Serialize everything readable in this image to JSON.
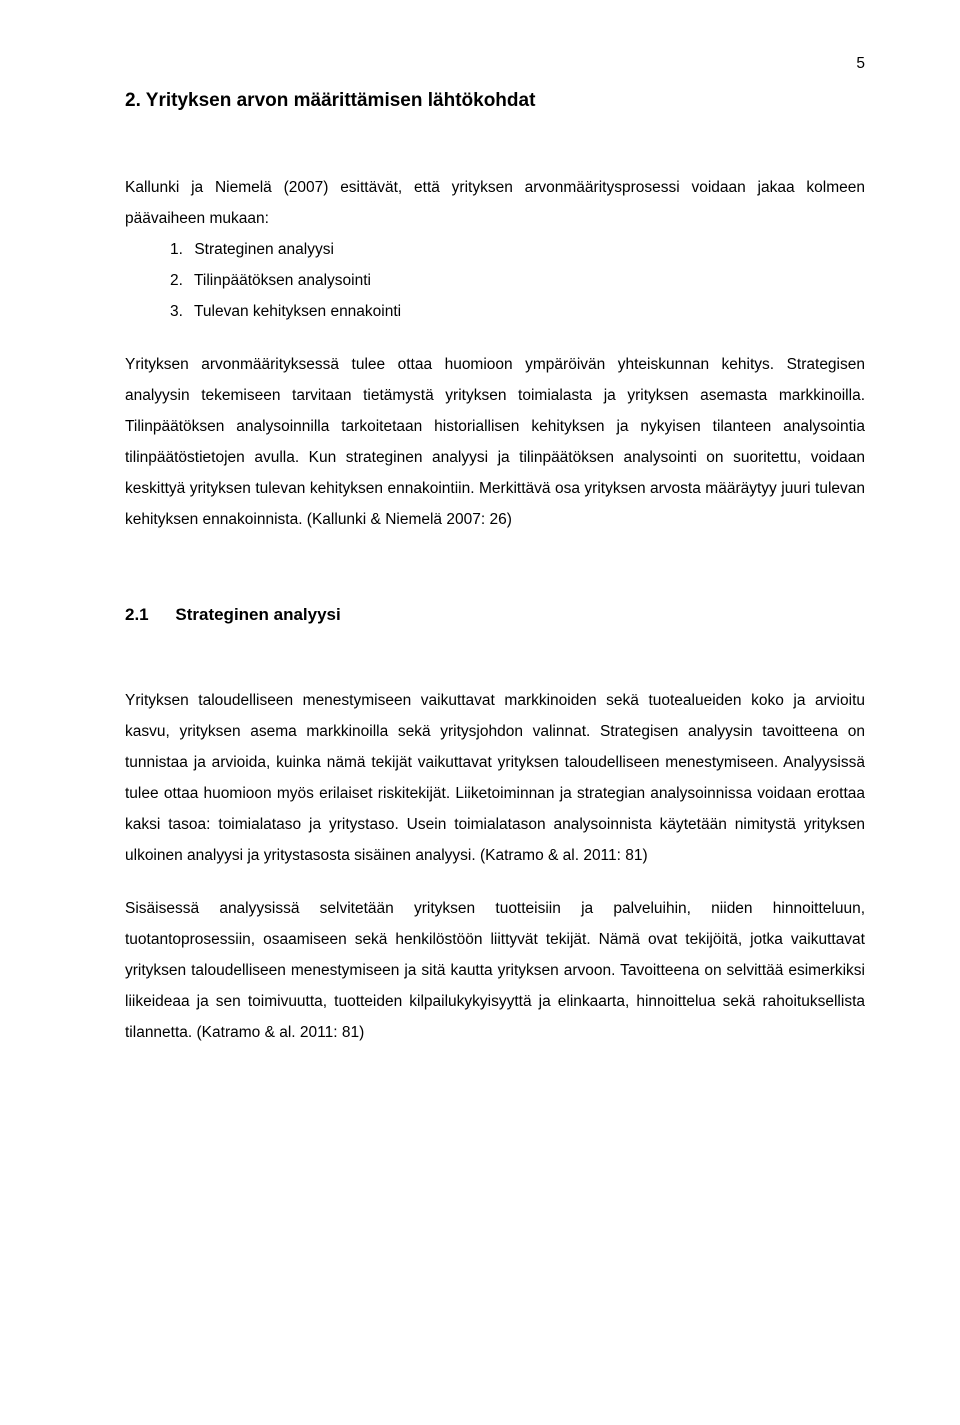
{
  "page": {
    "number": "5"
  },
  "heading1": "2. Yrityksen arvon määrittämisen lähtökohdat",
  "intro": "Kallunki ja Niemelä (2007) esittävät, että yrityksen arvonmääritysprosessi voidaan jakaa kolmeen päävaiheen mukaan:",
  "list": {
    "item1": {
      "num": "1.",
      "text": "Strateginen analyysi"
    },
    "item2": {
      "num": "2.",
      "text": "Tilinpäätöksen analysointi"
    },
    "item3": {
      "num": "3.",
      "text": "Tulevan kehityksen ennakointi"
    }
  },
  "body1": "Yrityksen arvonmäärityksessä tulee ottaa huomioon ympäröivän yhteiskunnan kehitys. Strategisen analyysin tekemiseen tarvitaan tietämystä yrityksen toimialasta ja yrityksen asemasta markkinoilla. Tilinpäätöksen analysoinnilla tarkoitetaan historiallisen kehityksen ja nykyisen tilanteen analysointia tilinpäätöstietojen avulla. Kun strateginen analyysi ja tilinpäätöksen analysointi on suoritettu, voidaan keskittyä yrityksen tulevan kehityksen ennakointiin. Merkittävä osa yrityksen arvosta määräytyy juuri tulevan kehityksen ennakoinnista. (Kallunki & Niemelä 2007: 26)",
  "heading2": {
    "num": "2.1",
    "text": "Strateginen analyysi"
  },
  "body2": "Yrityksen taloudelliseen menestymiseen vaikuttavat markkinoiden sekä tuotealueiden koko ja arvioitu kasvu, yrityksen asema markkinoilla sekä yritysjohdon valinnat. Strategisen analyysin tavoitteena on tunnistaa ja arvioida, kuinka nämä tekijät vaikuttavat yrityksen taloudelliseen menestymiseen. Analyysissä tulee ottaa huomioon myös erilaiset riskitekijät. Liiketoiminnan ja strategian analysoinnissa voidaan erottaa kaksi tasoa: toimialataso ja yritystaso. Usein toimialatason analysoinnista käytetään nimitystä yrityksen ulkoinen analyysi ja yritystasosta sisäinen analyysi. (Katramo & al. 2011: 81)",
  "body3": "Sisäisessä analyysissä selvitetään yrityksen tuotteisiin ja palveluihin, niiden hinnoitteluun, tuotantoprosessiin, osaamiseen sekä henkilöstöön liittyvät tekijät. Nämä ovat tekijöitä, jotka vaikuttavat yrityksen taloudelliseen menestymiseen ja sitä kautta yrityksen arvoon. Tavoitteena on selvittää esimerkiksi liikeideaa ja sen toimivuutta, tuotteiden kilpailukykyisyyttä ja elinkaarta, hinnoittelua sekä rahoituksellista tilannetta. (Katramo & al. 2011: 81)"
}
